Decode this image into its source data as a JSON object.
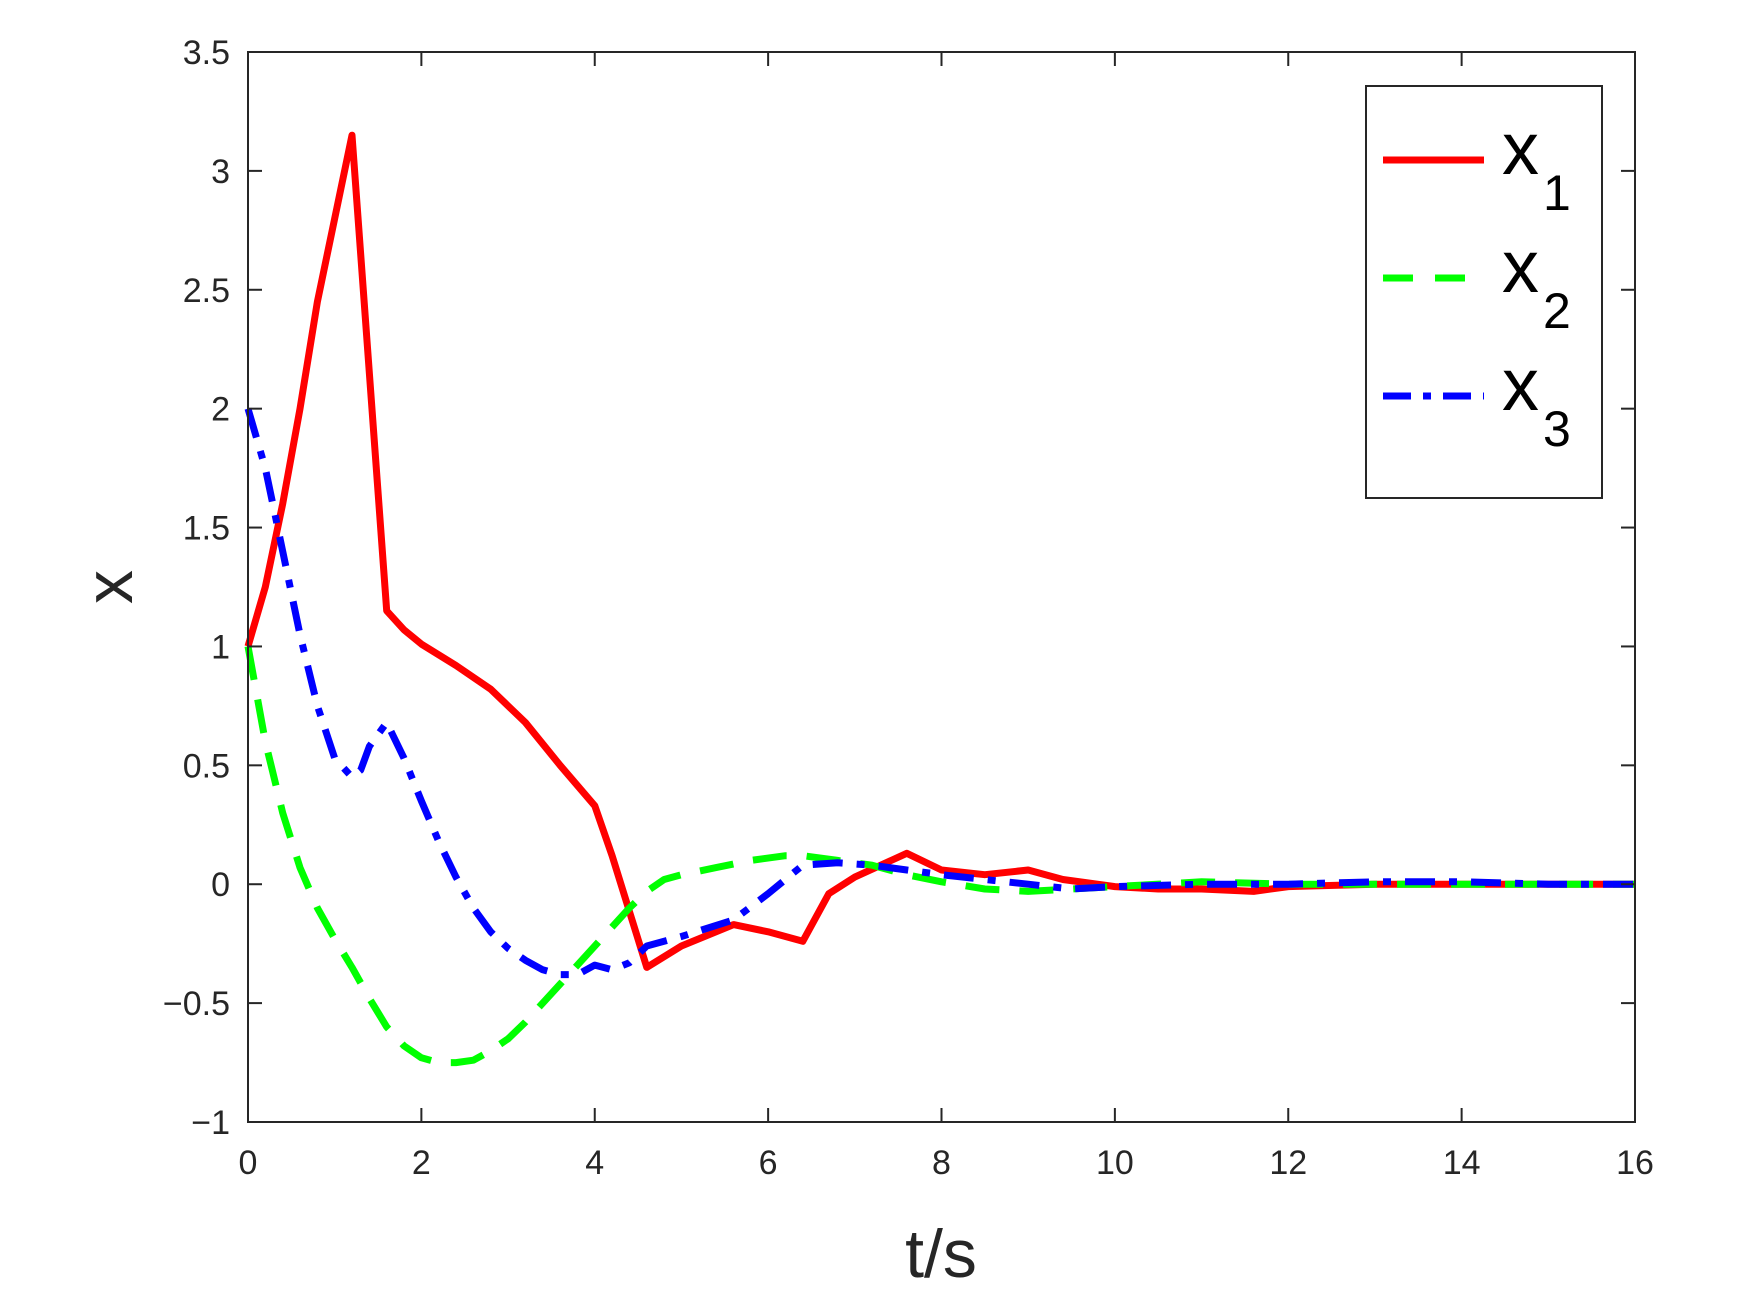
{
  "chart_data": {
    "type": "line",
    "xlabel": "t/s",
    "ylabel": "x",
    "xlim": [
      0,
      16
    ],
    "ylim": [
      -1,
      3.5
    ],
    "xticks": [
      0,
      2,
      4,
      6,
      8,
      10,
      12,
      14,
      16
    ],
    "yticks": [
      -1,
      -0.5,
      0,
      0.5,
      1,
      1.5,
      2,
      2.5,
      3,
      3.5
    ],
    "xtick_labels": [
      "0",
      "2",
      "4",
      "6",
      "8",
      "10",
      "12",
      "14",
      "16"
    ],
    "ytick_labels": [
      "−1",
      "−0.5",
      "0",
      "0.5",
      "1",
      "1.5",
      "2",
      "2.5",
      "3",
      "3.5"
    ],
    "grid": false,
    "legend_position": "top-right",
    "series": [
      {
        "name": "x1",
        "label_base": "x",
        "label_sub": "1",
        "color": "#ff0000",
        "style": "solid",
        "x": [
          0,
          0.2,
          0.4,
          0.6,
          0.8,
          1.0,
          1.2,
          1.6,
          1.8,
          2.0,
          2.4,
          2.8,
          3.2,
          3.6,
          4.0,
          4.2,
          4.6,
          5.0,
          5.6,
          6.0,
          6.4,
          6.7,
          7.0,
          7.6,
          8.0,
          8.5,
          9.0,
          9.4,
          10.0,
          10.5,
          11.0,
          11.6,
          12.0,
          13.0,
          14.0,
          15.0,
          16.0
        ],
        "y": [
          1.0,
          1.25,
          1.6,
          2.0,
          2.45,
          2.8,
          3.15,
          1.15,
          1.07,
          1.01,
          0.92,
          0.82,
          0.68,
          0.5,
          0.33,
          0.12,
          -0.35,
          -0.26,
          -0.17,
          -0.2,
          -0.24,
          -0.04,
          0.03,
          0.13,
          0.06,
          0.04,
          0.06,
          0.02,
          -0.01,
          -0.02,
          -0.02,
          -0.03,
          -0.01,
          0.0,
          0.0,
          0.0,
          0.0
        ]
      },
      {
        "name": "x2",
        "label_base": "x",
        "label_sub": "2",
        "color": "#00ff00",
        "style": "dashed",
        "x": [
          0,
          0.2,
          0.4,
          0.6,
          0.8,
          1.0,
          1.2,
          1.4,
          1.6,
          1.8,
          2.0,
          2.2,
          2.4,
          2.6,
          2.8,
          3.0,
          3.2,
          3.4,
          3.6,
          3.8,
          4.0,
          4.2,
          4.4,
          4.6,
          4.8,
          5.0,
          5.4,
          5.8,
          6.2,
          6.4,
          6.8,
          7.2,
          7.6,
          8.0,
          8.5,
          9.0,
          9.5,
          10.0,
          11.0,
          12.0,
          13.0,
          14.0,
          15.0,
          16.0
        ],
        "y": [
          1.0,
          0.6,
          0.3,
          0.07,
          -0.1,
          -0.23,
          -0.35,
          -0.48,
          -0.6,
          -0.68,
          -0.73,
          -0.75,
          -0.75,
          -0.74,
          -0.7,
          -0.65,
          -0.58,
          -0.5,
          -0.42,
          -0.34,
          -0.26,
          -0.18,
          -0.1,
          -0.03,
          0.02,
          0.04,
          0.07,
          0.1,
          0.12,
          0.12,
          0.1,
          0.08,
          0.04,
          0.01,
          -0.02,
          -0.03,
          -0.02,
          -0.01,
          0.01,
          0.0,
          0.0,
          0.0,
          0.0,
          0.0
        ]
      },
      {
        "name": "x3",
        "label_base": "x",
        "label_sub": "3",
        "color": "#0000ff",
        "style": "dashdot",
        "x": [
          0,
          0.2,
          0.4,
          0.6,
          0.8,
          1.0,
          1.2,
          1.3,
          1.4,
          1.6,
          1.8,
          2.0,
          2.2,
          2.4,
          2.6,
          2.8,
          3.0,
          3.2,
          3.4,
          3.6,
          3.8,
          4.0,
          4.2,
          4.4,
          4.6,
          5.0,
          5.6,
          6.0,
          6.4,
          6.8,
          7.2,
          7.6,
          8.0,
          8.5,
          9.0,
          9.5,
          10.0,
          11.0,
          12.0,
          13.0,
          14.0,
          15.0,
          16.0
        ],
        "y": [
          2.0,
          1.75,
          1.4,
          1.05,
          0.75,
          0.53,
          0.45,
          0.48,
          0.58,
          0.68,
          0.53,
          0.35,
          0.18,
          0.03,
          -0.1,
          -0.2,
          -0.27,
          -0.32,
          -0.36,
          -0.38,
          -0.38,
          -0.34,
          -0.36,
          -0.33,
          -0.26,
          -0.22,
          -0.15,
          -0.04,
          0.08,
          0.09,
          0.08,
          0.06,
          0.04,
          0.02,
          0.0,
          -0.02,
          -0.01,
          0.0,
          0.0,
          0.01,
          0.01,
          0.0,
          0.0
        ]
      }
    ]
  }
}
